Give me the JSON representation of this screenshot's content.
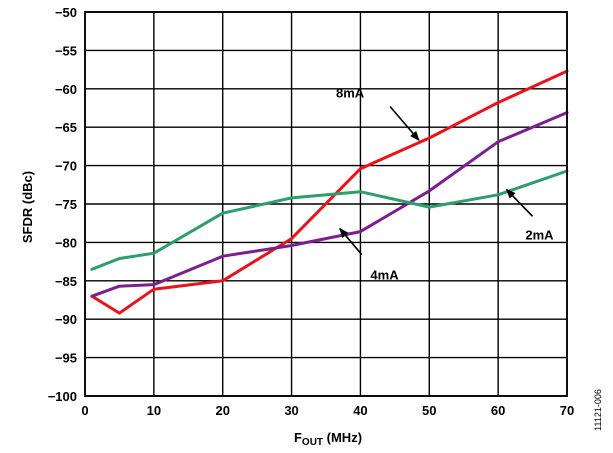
{
  "chart_data": {
    "type": "line",
    "xlabel_main": "F",
    "xlabel_sub": "OUT",
    "xlabel_tail": " (MHz)",
    "ylabel": "SFDR (dBc)",
    "xlim": [
      0,
      70
    ],
    "ylim": [
      -100,
      -50
    ],
    "xticks": [
      0,
      10,
      20,
      30,
      40,
      50,
      60,
      70
    ],
    "yticks": [
      -50,
      -55,
      -60,
      -65,
      -70,
      -75,
      -80,
      -85,
      -90,
      -95,
      -100
    ],
    "grid": true,
    "series": [
      {
        "name": "8mA",
        "color": "#e8141b",
        "x": [
          1,
          5,
          10,
          20,
          30,
          40,
          50,
          60,
          70
        ],
        "y": [
          -87.0,
          -89.2,
          -86.1,
          -85.0,
          -79.5,
          -70.4,
          -66.4,
          -61.8,
          -57.7
        ]
      },
      {
        "name": "4mA",
        "color": "#7b1f8e",
        "x": [
          1,
          5,
          10,
          20,
          30,
          40,
          50,
          60,
          70
        ],
        "y": [
          -87.0,
          -85.7,
          -85.5,
          -81.8,
          -80.4,
          -78.6,
          -73.3,
          -66.9,
          -63.1
        ]
      },
      {
        "name": "2mA",
        "color": "#2e9e6c",
        "x": [
          1,
          5,
          10,
          20,
          30,
          40,
          50,
          60,
          70
        ],
        "y": [
          -83.5,
          -82.1,
          -81.4,
          -76.2,
          -74.2,
          -73.4,
          -75.4,
          -73.8,
          -70.7
        ]
      }
    ],
    "annotations": [
      {
        "series": "8mA",
        "text": "8mA",
        "label_x": 38.5,
        "label_y": -60.5,
        "arrow_from": [
          44.3,
          -62.3
        ],
        "arrow_to": [
          48.5,
          -66.7
        ]
      },
      {
        "series": "4mA",
        "text": "4mA",
        "label_x": 43.5,
        "label_y": -84.2,
        "arrow_from": [
          40.2,
          -81.6
        ],
        "arrow_to": [
          37.0,
          -78.2
        ]
      },
      {
        "series": "2mA",
        "text": "2mA",
        "label_x": 66.0,
        "label_y": -79.0,
        "arrow_from": [
          65.0,
          -76.6
        ],
        "arrow_to": [
          61.2,
          -73.1
        ]
      }
    ],
    "figure_id": "11121-006"
  }
}
